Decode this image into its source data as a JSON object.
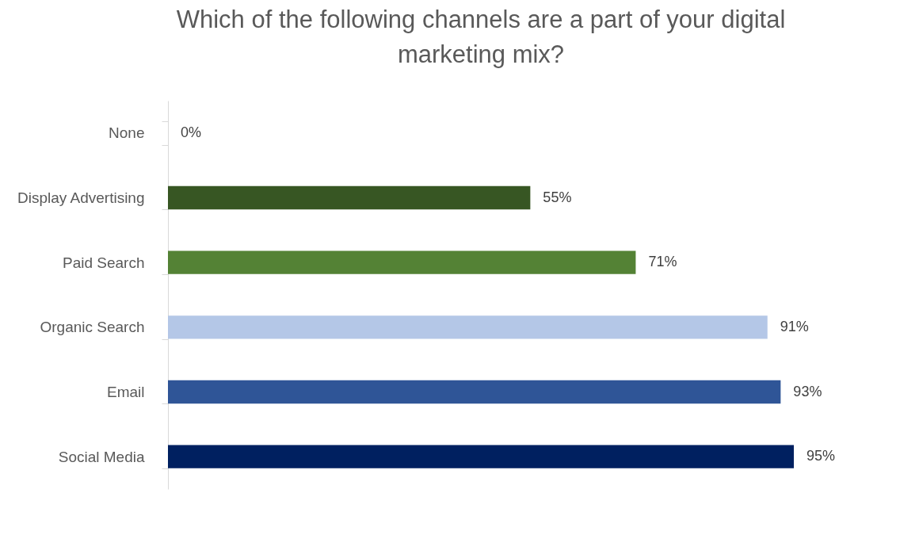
{
  "chart_data": {
    "type": "bar",
    "orientation": "horizontal",
    "title": "Which of the following channels are a part of your digital marketing mix?",
    "categories": [
      "None",
      "Display Advertising",
      "Paid Search",
      "Organic Search",
      "Email",
      "Social Media"
    ],
    "values": [
      0,
      55,
      71,
      91,
      93,
      95
    ],
    "colors": [
      "#375623",
      "#375623",
      "#548235",
      "#b4c7e7",
      "#2f5597",
      "#002060"
    ],
    "value_labels": [
      "0%",
      "55%",
      "71%",
      "91%",
      "93%",
      "95%"
    ],
    "tick_labels": "y"
  }
}
